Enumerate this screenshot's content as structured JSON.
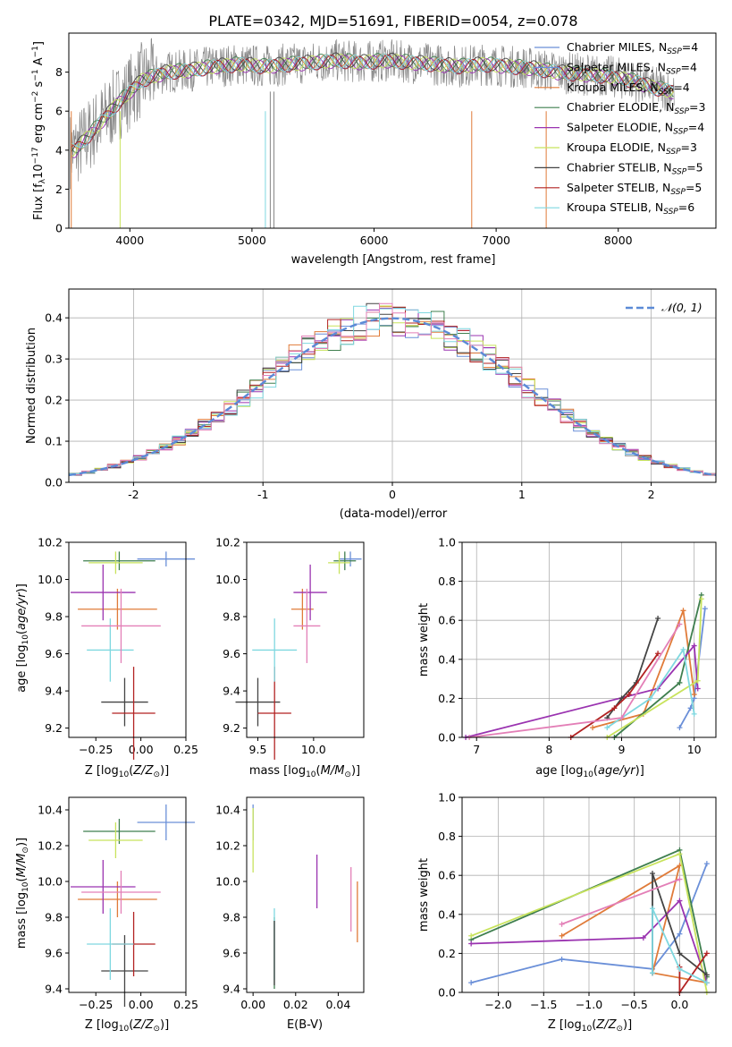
{
  "title": "PLATE=0342, MJD=51691, FIBERID=0054, z=0.078",
  "colors": {
    "chabrier_miles": "#6a8fd8",
    "salpeter_miles": "#6a8fd8",
    "kroupa_miles": "#e07b39",
    "chabrier_elodie": "#3f7f4f",
    "salpeter_elodie": "#9a33b0",
    "kroupa_elodie": "#c8e35c",
    "chabrier_stelib": "#444444",
    "salpeter_stelib": "#b22222",
    "kroupa_stelib": "#7fd8e0",
    "pink": "#e37fb7",
    "grid": "#b0b0b0",
    "normal_curve": "#5b8ad6"
  },
  "legend_main": [
    {
      "label": "Chabrier MILES, N",
      "sub": "SSP",
      "tail": "=4",
      "color_key": "chabrier_miles"
    },
    {
      "label": "Salpeter MILES, N",
      "sub": "SSP",
      "tail": "=4",
      "color_key": "salpeter_miles"
    },
    {
      "label": "Kroupa MILES, N",
      "sub": "SSP",
      "tail": "=4",
      "color_key": "kroupa_miles"
    },
    {
      "label": "Chabrier ELODIE, N",
      "sub": "SSP",
      "tail": "=3",
      "color_key": "chabrier_elodie"
    },
    {
      "label": "Salpeter ELODIE, N",
      "sub": "SSP",
      "tail": "=4",
      "color_key": "salpeter_elodie"
    },
    {
      "label": "Kroupa ELODIE, N",
      "sub": "SSP",
      "tail": "=3",
      "color_key": "kroupa_elodie"
    },
    {
      "label": "Chabrier STELIB, N",
      "sub": "SSP",
      "tail": "=5",
      "color_key": "chabrier_stelib"
    },
    {
      "label": "Salpeter STELIB, N",
      "sub": "SSP",
      "tail": "=5",
      "color_key": "salpeter_stelib"
    },
    {
      "label": "Kroupa STELIB, N",
      "sub": "SSP",
      "tail": "=6",
      "color_key": "kroupa_stelib"
    }
  ],
  "chart_data": [
    {
      "type": "line",
      "name": "spectrum",
      "xlabel": "wavelength [Angstrom, rest frame]",
      "ylabel": "Flux [f_λ 10^-17 erg cm^-2 s^-1 A^-1]",
      "xlim": [
        3500,
        8800
      ],
      "ylim": [
        0,
        10
      ],
      "xticks": [
        4000,
        5000,
        6000,
        7000,
        8000
      ],
      "yticks": [
        0,
        2,
        4,
        6,
        8
      ],
      "grid": false,
      "legend_position": "right",
      "observed_x": [
        3550,
        3700,
        3900,
        4100,
        4300,
        4500,
        4700,
        4900,
        5100,
        5300,
        5500,
        5700,
        5900,
        6100,
        6300,
        6500,
        6700,
        6900,
        7100,
        7300,
        7500,
        7700,
        7900,
        8100,
        8300,
        8450
      ],
      "observed_y": [
        4.0,
        5.0,
        6.4,
        7.6,
        8.0,
        8.1,
        8.3,
        8.4,
        8.3,
        8.4,
        8.5,
        8.6,
        8.5,
        8.6,
        8.5,
        8.4,
        8.3,
        8.4,
        8.3,
        8.2,
        8.0,
        7.9,
        7.8,
        7.6,
        7.2,
        7.0
      ]
    },
    {
      "type": "bar",
      "name": "residual_histogram",
      "xlabel": "(data-model)/error",
      "ylabel": "Normed distribution",
      "xlim": [
        -2.5,
        2.5
      ],
      "ylim": [
        0,
        0.47
      ],
      "xticks": [
        -2,
        -1,
        0,
        1,
        2
      ],
      "yticks": [
        0.0,
        0.1,
        0.2,
        0.3,
        0.4
      ],
      "grid": true,
      "legend": "𝒩(0, 1)",
      "legend_position": "top-right",
      "normal_curve": {
        "mu": 0,
        "sigma": 1
      }
    },
    {
      "type": "scatter",
      "name": "age_vs_Z",
      "xlabel": "Z [log10(Z/Z☉)]",
      "ylabel": "age  [log10(age/yr)]",
      "xlim": [
        -0.4,
        0.25
      ],
      "ylim": [
        9.15,
        10.2
      ],
      "xticks": [
        -0.25,
        0.0,
        0.25
      ],
      "xticklabels": [
        "−0.25",
        "0.00",
        "0.25"
      ],
      "yticks": [
        9.2,
        9.4,
        9.6,
        9.8,
        10.0,
        10.2
      ],
      "points": [
        {
          "c": "chabrier_miles",
          "x": 0.14,
          "y": 10.11,
          "xe": 0.16,
          "ye": 0.04
        },
        {
          "c": "kroupa_miles",
          "x": -0.13,
          "y": 9.84,
          "xe": 0.22,
          "ye": 0.11
        },
        {
          "c": "chabrier_elodie",
          "x": -0.12,
          "y": 10.1,
          "xe": 0.2,
          "ye": 0.05
        },
        {
          "c": "salpeter_elodie",
          "x": -0.21,
          "y": 9.93,
          "xe": 0.18,
          "ye": 0.15
        },
        {
          "c": "kroupa_elodie",
          "x": -0.14,
          "y": 10.09,
          "xe": 0.15,
          "ye": 0.06
        },
        {
          "c": "chabrier_stelib",
          "x": -0.09,
          "y": 9.34,
          "xe": 0.13,
          "ye": 0.13
        },
        {
          "c": "salpeter_stelib",
          "x": -0.04,
          "y": 9.28,
          "xe": 0.12,
          "ye": 0.25
        },
        {
          "c": "kroupa_stelib",
          "x": -0.17,
          "y": 9.62,
          "xe": 0.13,
          "ye": 0.17
        },
        {
          "c": "pink",
          "x": -0.11,
          "y": 9.75,
          "xe": 0.22,
          "ye": 0.2
        }
      ]
    },
    {
      "type": "scatter",
      "name": "age_vs_mass",
      "xlabel": "mass [log10(M/M☉)]",
      "ylim": [
        9.15,
        10.2
      ],
      "xlim": [
        9.4,
        10.45
      ],
      "xticks": [
        9.5,
        10.0
      ],
      "yticks": [
        9.2,
        9.4,
        9.6,
        9.8,
        10.0,
        10.2
      ],
      "points": [
        {
          "c": "chabrier_miles",
          "x": 10.33,
          "y": 10.11,
          "xe": 0.1,
          "ye": 0.04
        },
        {
          "c": "kroupa_miles",
          "x": 9.9,
          "y": 9.84,
          "xe": 0.1,
          "ye": 0.11
        },
        {
          "c": "chabrier_elodie",
          "x": 10.28,
          "y": 10.1,
          "xe": 0.1,
          "ye": 0.05
        },
        {
          "c": "salpeter_elodie",
          "x": 9.97,
          "y": 9.93,
          "xe": 0.15,
          "ye": 0.15
        },
        {
          "c": "kroupa_elodie",
          "x": 10.23,
          "y": 10.09,
          "xe": 0.1,
          "ye": 0.06
        },
        {
          "c": "chabrier_stelib",
          "x": 9.5,
          "y": 9.34,
          "xe": 0.2,
          "ye": 0.13
        },
        {
          "c": "salpeter_stelib",
          "x": 9.65,
          "y": 9.28,
          "xe": 0.15,
          "ye": 0.25
        },
        {
          "c": "kroupa_stelib",
          "x": 9.65,
          "y": 9.62,
          "xe": 0.2,
          "ye": 0.17
        },
        {
          "c": "pink",
          "x": 9.94,
          "y": 9.75,
          "xe": 0.12,
          "ye": 0.2
        }
      ]
    },
    {
      "type": "line",
      "name": "mass_weight_vs_age",
      "xlabel": "age  [log10(age/yr)]",
      "ylabel": "mass weight",
      "xlim": [
        6.8,
        10.3
      ],
      "ylim": [
        0,
        1.0
      ],
      "xticks": [
        7,
        8,
        9,
        10
      ],
      "yticks": [
        0.0,
        0.2,
        0.4,
        0.6,
        0.8,
        1.0
      ],
      "grid": true,
      "series": [
        {
          "c": "chabrier_miles",
          "x": [
            9.8,
            9.95,
            10.0,
            10.15
          ],
          "y": [
            0.05,
            0.15,
            0.2,
            0.66
          ]
        },
        {
          "c": "kroupa_miles",
          "x": [
            8.6,
            9.3,
            9.85,
            10.0
          ],
          "y": [
            0.05,
            0.12,
            0.65,
            0.22
          ]
        },
        {
          "c": "chabrier_elodie",
          "x": [
            8.9,
            9.8,
            10.1
          ],
          "y": [
            0.0,
            0.28,
            0.73
          ]
        },
        {
          "c": "salpeter_elodie",
          "x": [
            6.85,
            9.5,
            10.0,
            10.05
          ],
          "y": [
            0.0,
            0.25,
            0.47,
            0.25
          ]
        },
        {
          "c": "kroupa_elodie",
          "x": [
            8.8,
            10.05,
            10.1
          ],
          "y": [
            0.0,
            0.29,
            0.71
          ]
        },
        {
          "c": "chabrier_stelib",
          "x": [
            8.8,
            9.0,
            9.2,
            9.5
          ],
          "y": [
            0.1,
            0.2,
            0.28,
            0.61
          ]
        },
        {
          "c": "salpeter_stelib",
          "x": [
            8.3,
            8.9,
            9.1,
            9.5
          ],
          "y": [
            0.0,
            0.15,
            0.22,
            0.43
          ]
        },
        {
          "c": "kroupa_stelib",
          "x": [
            8.8,
            9.4,
            9.85,
            10.0
          ],
          "y": [
            0.05,
            0.2,
            0.45,
            0.12
          ]
        },
        {
          "c": "pink",
          "x": [
            6.9,
            9.0,
            9.8
          ],
          "y": [
            0.0,
            0.1,
            0.58
          ]
        }
      ]
    },
    {
      "type": "scatter",
      "name": "mass_vs_Z",
      "xlabel": "Z [log10(Z/Z☉)]",
      "ylabel": "mass [log10(M/M☉)]",
      "xlim": [
        -0.4,
        0.25
      ],
      "ylim": [
        9.38,
        10.47
      ],
      "xticks": [
        -0.25,
        0.0,
        0.25
      ],
      "xticklabels": [
        "−0.25",
        "0.00",
        "0.25"
      ],
      "yticks": [
        9.4,
        9.6,
        9.8,
        10.0,
        10.2,
        10.4
      ],
      "points": [
        {
          "c": "chabrier_miles",
          "x": 0.14,
          "y": 10.33,
          "xe": 0.16,
          "ye": 0.1
        },
        {
          "c": "kroupa_miles",
          "x": -0.13,
          "y": 9.9,
          "xe": 0.22,
          "ye": 0.1
        },
        {
          "c": "chabrier_elodie",
          "x": -0.12,
          "y": 10.28,
          "xe": 0.2,
          "ye": 0.07
        },
        {
          "c": "salpeter_elodie",
          "x": -0.21,
          "y": 9.97,
          "xe": 0.18,
          "ye": 0.15
        },
        {
          "c": "kroupa_elodie",
          "x": -0.14,
          "y": 10.23,
          "xe": 0.15,
          "ye": 0.1
        },
        {
          "c": "chabrier_stelib",
          "x": -0.09,
          "y": 9.5,
          "xe": 0.13,
          "ye": 0.2
        },
        {
          "c": "salpeter_stelib",
          "x": -0.04,
          "y": 9.65,
          "xe": 0.12,
          "ye": 0.18
        },
        {
          "c": "kroupa_stelib",
          "x": -0.17,
          "y": 9.65,
          "xe": 0.13,
          "ye": 0.2
        },
        {
          "c": "pink",
          "x": -0.11,
          "y": 9.94,
          "xe": 0.22,
          "ye": 0.12
        }
      ]
    },
    {
      "type": "scatter",
      "name": "mass_vs_EBV",
      "xlabel": "E(B-V)",
      "xlim": [
        -0.003,
        0.052
      ],
      "ylim": [
        9.38,
        10.47
      ],
      "xticks": [
        0.0,
        0.02,
        0.04
      ],
      "xticklabels": [
        "0.00",
        "0.02",
        "0.04"
      ],
      "yticks": [
        9.4,
        9.6,
        9.8,
        10.0,
        10.2,
        10.4
      ],
      "points": [
        {
          "c": "chabrier_miles",
          "x": 0.0,
          "y": 10.33,
          "xe": 0,
          "ye": 0.1
        },
        {
          "c": "kroupa_elodie",
          "x": 0.0,
          "y": 10.23,
          "xe": 0,
          "ye": 0.18
        },
        {
          "c": "chabrier_elodie",
          "x": 0.01,
          "y": 9.6,
          "xe": 0,
          "ye": 0.2
        },
        {
          "c": "kroupa_stelib",
          "x": 0.01,
          "y": 9.65,
          "xe": 0,
          "ye": 0.2
        },
        {
          "c": "chabrier_stelib",
          "x": 0.01,
          "y": 9.6,
          "xe": 0,
          "ye": 0.18
        },
        {
          "c": "salpeter_elodie",
          "x": 0.03,
          "y": 10.0,
          "xe": 0,
          "ye": 0.15
        },
        {
          "c": "pink",
          "x": 0.046,
          "y": 9.9,
          "xe": 0,
          "ye": 0.18
        },
        {
          "c": "kroupa_miles",
          "x": 0.049,
          "y": 9.83,
          "xe": 0,
          "ye": 0.17
        }
      ]
    },
    {
      "type": "line",
      "name": "mass_weight_vs_Z",
      "xlabel": "Z [log10(Z/Z☉)]",
      "ylabel": "mass weight",
      "xlim": [
        -2.4,
        0.4
      ],
      "ylim": [
        0,
        1.0
      ],
      "xticks": [
        -2.0,
        -1.5,
        -1.0,
        -0.5,
        0.0
      ],
      "xticklabels": [
        "−2.0",
        "−1.5",
        "−1.0",
        "−0.5",
        "0.0"
      ],
      "yticks": [
        0.0,
        0.2,
        0.4,
        0.6,
        0.8,
        1.0
      ],
      "grid": true,
      "series": [
        {
          "c": "chabrier_miles",
          "x": [
            -2.3,
            -1.3,
            -0.3,
            0.0,
            0.3
          ],
          "y": [
            0.05,
            0.17,
            0.12,
            0.3,
            0.66
          ]
        },
        {
          "c": "kroupa_miles",
          "x": [
            -1.3,
            0.0,
            -0.3,
            0.3
          ],
          "y": [
            0.29,
            0.65,
            0.1,
            0.05
          ]
        },
        {
          "c": "chabrier_elodie",
          "x": [
            -2.3,
            0.0,
            0.3
          ],
          "y": [
            0.27,
            0.73,
            0.08
          ]
        },
        {
          "c": "salpeter_elodie",
          "x": [
            -2.3,
            -0.4,
            0.0,
            0.3
          ],
          "y": [
            0.25,
            0.28,
            0.47,
            0.05
          ]
        },
        {
          "c": "kroupa_elodie",
          "x": [
            -2.3,
            0.0,
            0.3
          ],
          "y": [
            0.29,
            0.71,
            0.0
          ]
        },
        {
          "c": "chabrier_stelib",
          "x": [
            -0.3,
            -0.3,
            0.0,
            0.3
          ],
          "y": [
            0.1,
            0.61,
            0.2,
            0.09
          ]
        },
        {
          "c": "salpeter_stelib",
          "x": [
            0.0,
            0.0,
            0.3
          ],
          "y": [
            0.13,
            0.0,
            0.2
          ]
        },
        {
          "c": "kroupa_stelib",
          "x": [
            -0.3,
            -0.3,
            0.0,
            0.3
          ],
          "y": [
            0.1,
            0.43,
            0.12,
            0.05
          ]
        },
        {
          "c": "pink",
          "x": [
            -1.3,
            0.0
          ],
          "y": [
            0.35,
            0.58
          ]
        }
      ]
    }
  ]
}
